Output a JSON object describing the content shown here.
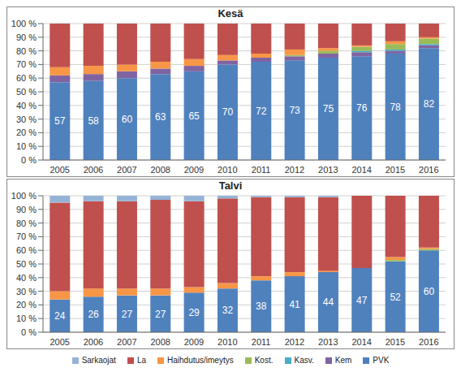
{
  "chart_data": [
    {
      "type": "bar",
      "title": "Kesä",
      "stacked": true,
      "grid": true,
      "categories": [
        "2005",
        "2006",
        "2007",
        "2008",
        "2009",
        "2010",
        "2011",
        "2012",
        "2013",
        "2014",
        "2015",
        "2016"
      ],
      "ylim": [
        0,
        100
      ],
      "yticks": [
        {
          "value": 0,
          "label": "0 %"
        },
        {
          "value": 10,
          "label": "10 %"
        },
        {
          "value": 20,
          "label": "20 %"
        },
        {
          "value": 30,
          "label": "30 %"
        },
        {
          "value": 40,
          "label": "40 %"
        },
        {
          "value": 50,
          "label": "50 %"
        },
        {
          "value": 60,
          "label": "60 %"
        },
        {
          "value": 70,
          "label": "70 %"
        },
        {
          "value": 80,
          "label": "80 %"
        },
        {
          "value": 90,
          "label": "90 %"
        },
        {
          "value": 100,
          "label": "100 %"
        }
      ],
      "series": [
        {
          "name": "Sarkaojat",
          "color": "#95B3D7",
          "values": [
            0,
            0,
            0,
            0,
            0,
            0,
            0,
            0,
            0,
            0,
            0,
            0
          ]
        },
        {
          "name": "La",
          "color": "#C0504D",
          "values": [
            32,
            31,
            30,
            28,
            26,
            23,
            22,
            19,
            18,
            16,
            13,
            10
          ]
        },
        {
          "name": "Haihdutus/imeytys",
          "color": "#F79646",
          "values": [
            6,
            6,
            5,
            5,
            5,
            4,
            3,
            4,
            2,
            1,
            2,
            1
          ]
        },
        {
          "name": "Kost.",
          "color": "#9BBB59",
          "values": [
            0,
            0,
            0,
            0,
            0,
            0,
            0,
            1,
            2,
            3,
            4,
            4
          ]
        },
        {
          "name": "Kasv.",
          "color": "#4BACC6",
          "values": [
            0,
            0,
            0,
            0,
            0,
            0,
            0,
            0,
            0,
            1,
            1,
            1
          ]
        },
        {
          "name": "Kem",
          "color": "#8064A2",
          "values": [
            5,
            5,
            5,
            4,
            4,
            3,
            3,
            3,
            3,
            3,
            2,
            2
          ]
        },
        {
          "name": "PVK",
          "color": "#4F81BD",
          "values": [
            57,
            58,
            60,
            63,
            65,
            70,
            72,
            73,
            75,
            76,
            78,
            82
          ],
          "data_labels": true
        }
      ]
    },
    {
      "type": "bar",
      "title": "Talvi",
      "stacked": true,
      "grid": true,
      "legend": "bottom",
      "categories": [
        "2005",
        "2006",
        "2007",
        "2008",
        "2009",
        "2010",
        "2011",
        "2012",
        "2013",
        "2014",
        "2015",
        "2016"
      ],
      "ylim": [
        0,
        100
      ],
      "yticks": [
        {
          "value": 0,
          "label": "0 %"
        },
        {
          "value": 10,
          "label": "10 %"
        },
        {
          "value": 20,
          "label": "20 %"
        },
        {
          "value": 30,
          "label": "30 %"
        },
        {
          "value": 40,
          "label": "40 %"
        },
        {
          "value": 50,
          "label": "50 %"
        },
        {
          "value": 60,
          "label": "60 %"
        },
        {
          "value": 70,
          "label": "70 %"
        },
        {
          "value": 80,
          "label": "80 %"
        },
        {
          "value": 90,
          "label": "90 %"
        },
        {
          "value": 100,
          "label": "100 %"
        }
      ],
      "series": [
        {
          "name": "Sarkaojat",
          "color": "#95B3D7",
          "values": [
            5,
            4,
            4,
            3,
            4,
            2,
            1,
            1,
            1,
            0,
            0,
            0
          ]
        },
        {
          "name": "La",
          "color": "#C0504D",
          "values": [
            65,
            64,
            64,
            65,
            63,
            62,
            58,
            55,
            54,
            53,
            45,
            38
          ]
        },
        {
          "name": "Haihdutus/imeytys",
          "color": "#F79646",
          "values": [
            6,
            6,
            5,
            5,
            4,
            4,
            3,
            3,
            1,
            0,
            2,
            1
          ]
        },
        {
          "name": "Kost.",
          "color": "#9BBB59",
          "values": [
            0,
            0,
            0,
            0,
            0,
            0,
            0,
            0,
            0,
            0,
            1,
            1
          ]
        },
        {
          "name": "Kasv.",
          "color": "#4BACC6",
          "values": [
            0,
            0,
            0,
            0,
            0,
            0,
            0,
            0,
            0,
            0,
            0,
            0
          ]
        },
        {
          "name": "Kem",
          "color": "#8064A2",
          "values": [
            0,
            0,
            0,
            0,
            0,
            0,
            0,
            0,
            0,
            0,
            0,
            0
          ]
        },
        {
          "name": "PVK",
          "color": "#4F81BD",
          "values": [
            24,
            26,
            27,
            27,
            29,
            32,
            38,
            41,
            44,
            47,
            52,
            60
          ],
          "data_labels": true
        }
      ]
    }
  ]
}
